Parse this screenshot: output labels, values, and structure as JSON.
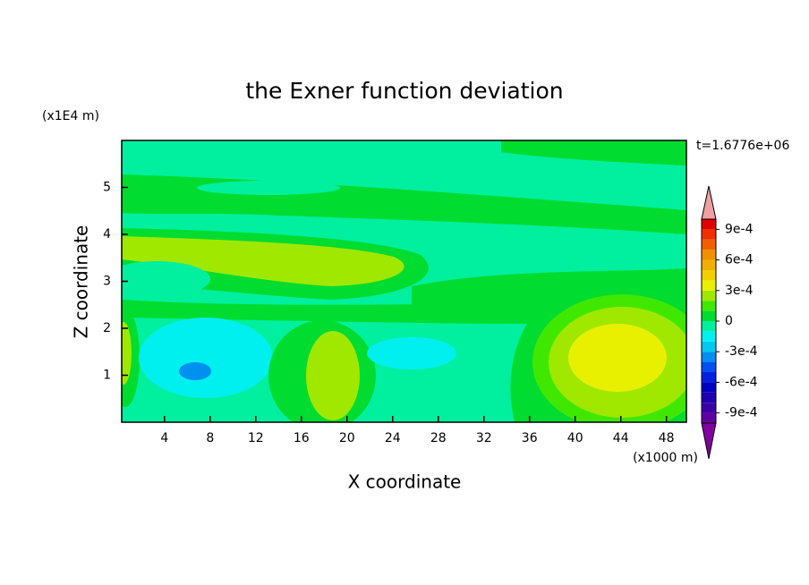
{
  "chart_data": {
    "type": "contour",
    "title": "the Exner function deviation",
    "xlabel": "X coordinate",
    "ylabel": "Z coordinate",
    "x_unit": "(x1000 m)",
    "y_unit": "(x1E4 m)",
    "time_label": "t=1.6776e+06",
    "xlim": [
      0.25,
      49.75
    ],
    "ylim": [
      0,
      6
    ],
    "xticks": [
      4,
      8,
      12,
      16,
      20,
      24,
      28,
      32,
      36,
      40,
      44,
      48
    ],
    "yticks": [
      1,
      2,
      3,
      4,
      5
    ],
    "levels": [
      -0.001,
      -0.0009,
      -0.0008,
      -0.0007,
      -0.0006,
      -0.0005,
      -0.0004,
      -0.0003,
      -0.0002,
      -0.0001,
      0,
      0.0001,
      0.0002,
      0.0003,
      0.0004,
      0.0005,
      0.0006,
      0.0007,
      0.0008,
      0.0009,
      0.001
    ],
    "colors": [
      "#6000a0",
      "#3c00a8",
      "#2000b0",
      "#0000c0",
      "#0020e0",
      "#0050f0",
      "#0090f0",
      "#00c8f0",
      "#00f0f0",
      "#00f0a0",
      "#00dc30",
      "#40e800",
      "#a0e800",
      "#e8f000",
      "#f0d000",
      "#f0b000",
      "#f09000",
      "#f06000",
      "#f03000",
      "#e00000"
    ],
    "extend_colors": [
      "#8000a0",
      "#f0a0a0"
    ],
    "colorbar_ticks": [
      {
        "value": 0.0009,
        "label": "9e-4"
      },
      {
        "value": 0.0006,
        "label": "6e-4"
      },
      {
        "value": 0.0003,
        "label": "3e-4"
      },
      0,
      {
        "value": -0.0003,
        "label": "-3e-4"
      },
      {
        "value": -0.0006,
        "label": "-6e-4"
      },
      {
        "value": -0.0009,
        "label": "-9e-4"
      }
    ]
  }
}
